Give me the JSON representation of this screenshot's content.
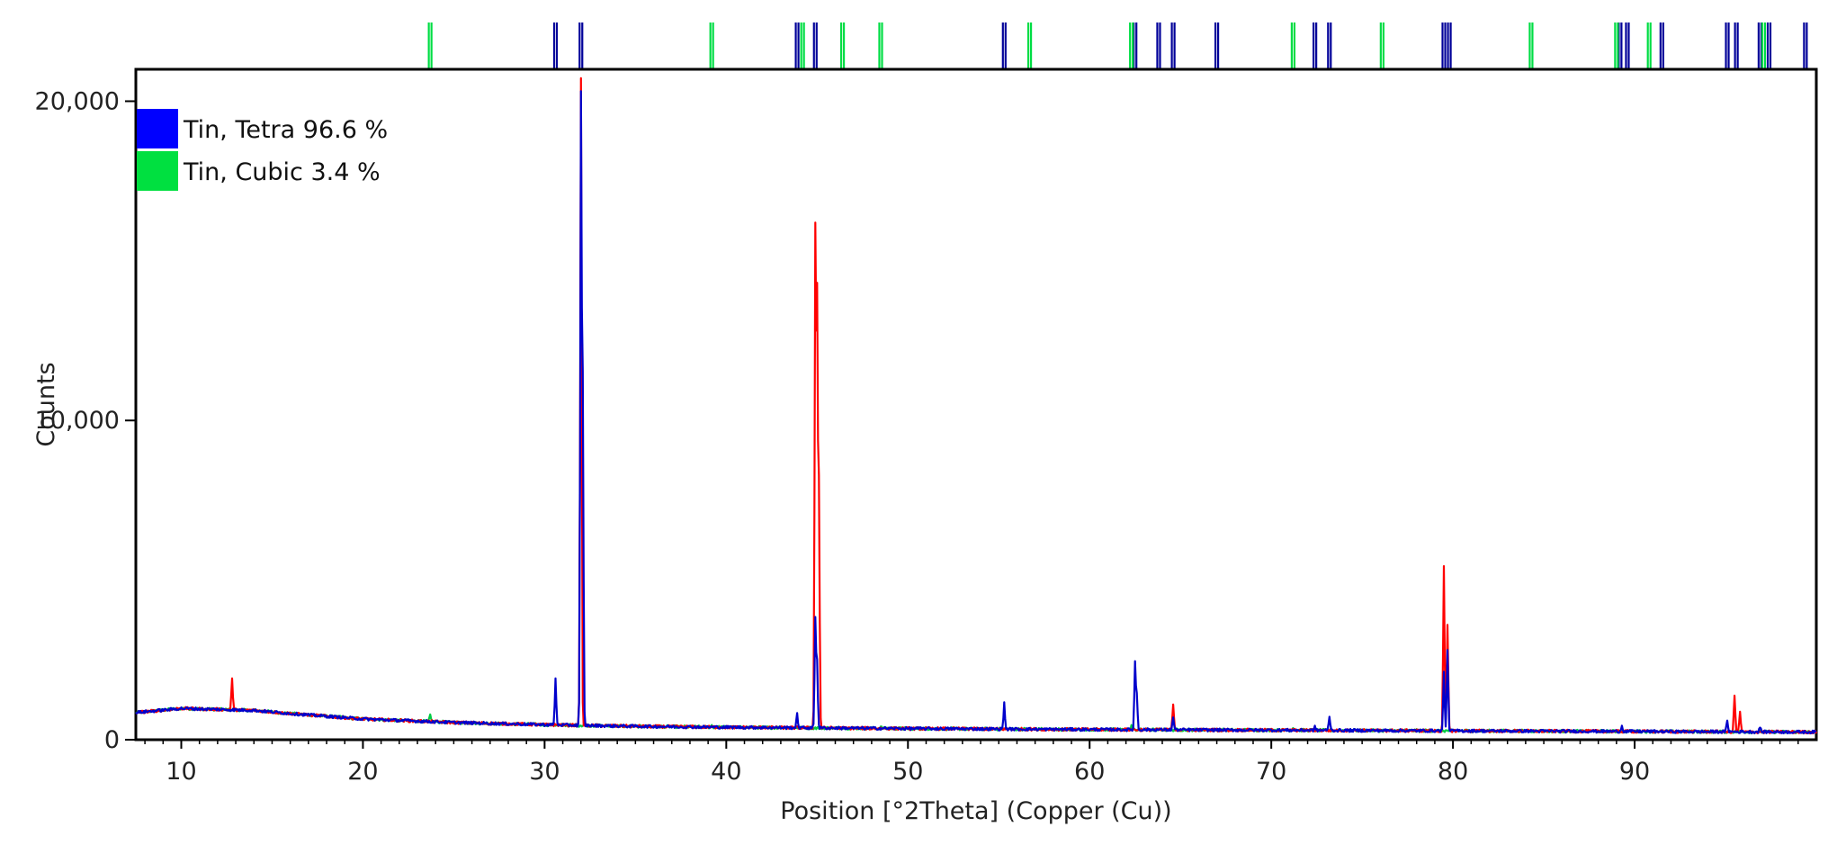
{
  "chart_data": {
    "type": "line",
    "title": "",
    "xlabel": "Position [°2Theta] (Copper (Cu))",
    "ylabel": "Counts",
    "xlim": [
      7.5,
      100
    ],
    "ylim": [
      0,
      21000
    ],
    "x_ticks": [
      10,
      20,
      30,
      40,
      50,
      60,
      70,
      80,
      90
    ],
    "y_ticks": [
      0,
      10000,
      20000
    ],
    "y_tick_labels": [
      "0",
      "10,000",
      "20,000"
    ],
    "grid": false,
    "legend": {
      "placement": "top-left",
      "entries": [
        {
          "label": "Tin, Tetra 96.6 %",
          "color": "#0000ff"
        },
        {
          "label": "Tin, Cubic 3.4 %",
          "color": "#00e040"
        }
      ]
    },
    "background": [
      [
        7.5,
        850
      ],
      [
        10,
        980
      ],
      [
        12,
        950
      ],
      [
        14,
        920
      ],
      [
        16,
        820
      ],
      [
        20,
        650
      ],
      [
        25,
        540
      ],
      [
        30,
        470
      ],
      [
        35,
        420
      ],
      [
        40,
        390
      ],
      [
        50,
        350
      ],
      [
        60,
        320
      ],
      [
        70,
        300
      ],
      [
        80,
        280
      ],
      [
        90,
        260
      ],
      [
        100,
        240
      ]
    ],
    "series": [
      {
        "color": "#ff0000",
        "peaks": [
          [
            12.8,
            1900
          ],
          [
            32.0,
            20700
          ],
          [
            44.9,
            15700
          ],
          [
            45.0,
            13500
          ],
          [
            45.1,
            7800
          ],
          [
            64.6,
            1150
          ],
          [
            79.5,
            5400
          ],
          [
            79.7,
            3600
          ],
          [
            95.5,
            1400
          ],
          [
            95.8,
            900
          ]
        ]
      },
      {
        "color": "#0000cc",
        "peaks": [
          [
            30.6,
            1900
          ],
          [
            32.0,
            19900
          ],
          [
            32.1,
            10800
          ],
          [
            43.9,
            800
          ],
          [
            44.9,
            3800
          ],
          [
            45.0,
            2400
          ],
          [
            55.3,
            1150
          ],
          [
            62.5,
            2400
          ],
          [
            62.6,
            1400
          ],
          [
            64.6,
            700
          ],
          [
            72.4,
            400
          ],
          [
            73.2,
            750
          ],
          [
            79.5,
            2100
          ],
          [
            79.7,
            2800
          ],
          [
            89.3,
            450
          ],
          [
            95.1,
            600
          ],
          [
            96.9,
            400
          ]
        ]
      },
      {
        "color": "#00cc44",
        "peaks": [
          [
            23.7,
            750
          ],
          [
            39.2,
            450
          ],
          [
            46.4,
            400
          ],
          [
            48.5,
            400
          ],
          [
            62.3,
            450
          ],
          [
            71.2,
            400
          ]
        ]
      }
    ],
    "reference_lines": [
      {
        "name": "Tin, Tetra",
        "color": "#000099",
        "positions": [
          30.6,
          32.0,
          43.9,
          44.9,
          55.3,
          62.5,
          63.8,
          64.6,
          67.0,
          72.4,
          73.2,
          79.5,
          79.8,
          89.2,
          89.6,
          91.5,
          95.1,
          95.6,
          96.9,
          97.4,
          99.4
        ]
      },
      {
        "name": "Tin, Cubic",
        "color": "#00dd44",
        "positions": [
          23.7,
          39.2,
          44.2,
          46.4,
          48.5,
          56.7,
          62.3,
          71.2,
          76.1,
          84.3,
          89.0,
          90.8,
          97.1
        ]
      }
    ]
  }
}
